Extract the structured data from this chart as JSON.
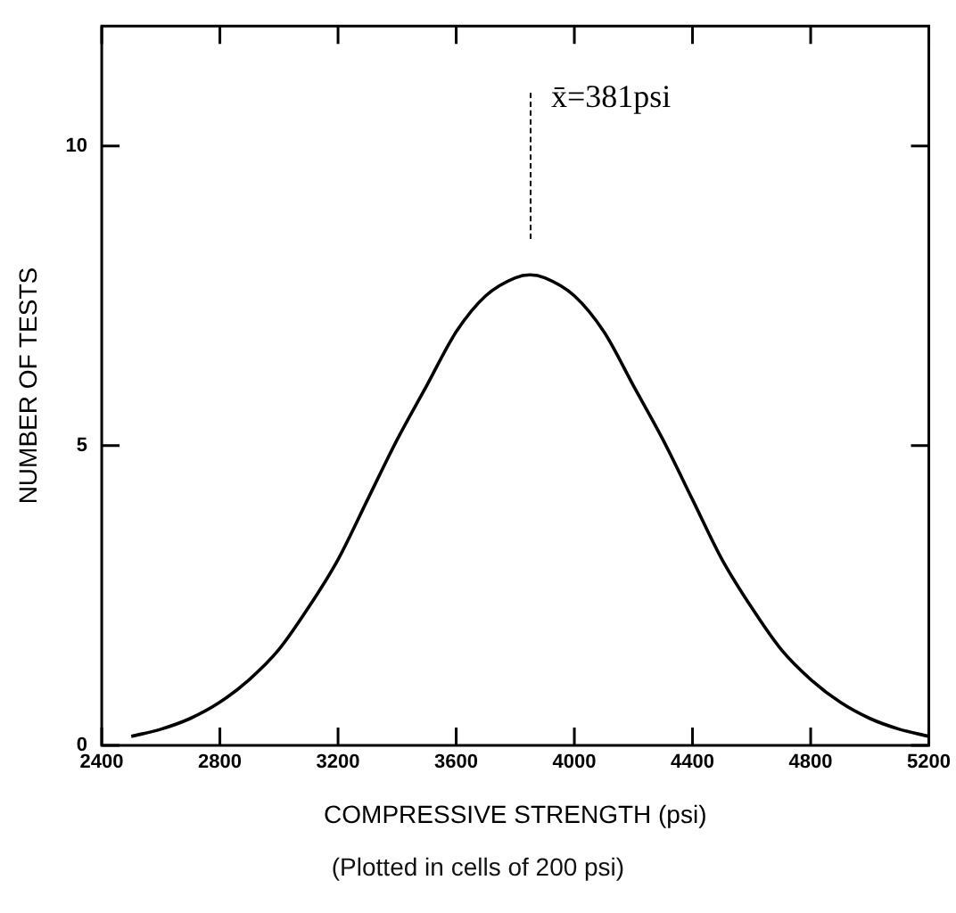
{
  "chart_data": {
    "type": "line",
    "xlabel": "COMPRESSIVE STRENGTH (psi)",
    "ylabel": "NUMBER OF TESTS",
    "x": [
      2500,
      2600,
      2700,
      2800,
      2900,
      3000,
      3100,
      3200,
      3300,
      3400,
      3500,
      3600,
      3700,
      3800,
      3850,
      3900,
      4000,
      4100,
      4200,
      4300,
      4400,
      4500,
      4600,
      4700,
      4800,
      4900,
      5000,
      5100,
      5200
    ],
    "series": [
      {
        "color": "#000000",
        "values": [
          0.15,
          0.27,
          0.45,
          0.72,
          1.1,
          1.6,
          2.3,
          3.1,
          4.1,
          5.1,
          6.0,
          6.9,
          7.5,
          7.8,
          7.85,
          7.8,
          7.5,
          6.9,
          6.0,
          5.1,
          4.1,
          3.1,
          2.3,
          1.6,
          1.1,
          0.72,
          0.45,
          0.27,
          0.15
        ]
      }
    ],
    "xlim": [
      2400,
      5200
    ],
    "xticks": [
      2400,
      2800,
      3200,
      3600,
      4000,
      4400,
      4800,
      5200
    ],
    "ylim": [
      0,
      12
    ],
    "yticks": [
      0,
      5,
      10
    ],
    "grid": false,
    "legend": false,
    "marker": "none",
    "line_style": "solid",
    "annotations": [
      "x̄=381psi",
      "(Plotted in cells of 200 psi)"
    ]
  }
}
